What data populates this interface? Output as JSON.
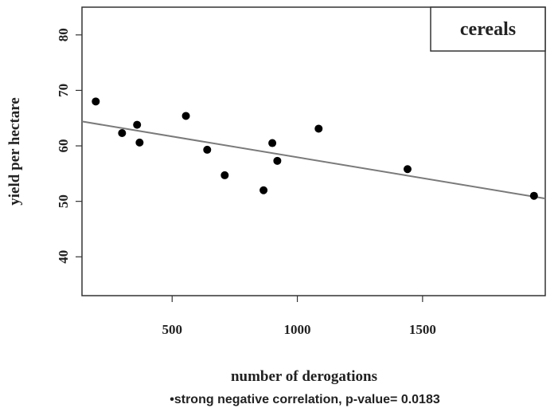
{
  "chart_data": {
    "type": "scatter",
    "title": "",
    "legend_label": "cereals",
    "legend_position": "top-right",
    "xlabel": "number of derogations",
    "ylabel": "yield per hectare",
    "note": "•strong negative correlation, p-value=  0.0183",
    "xlim": [
      140,
      1990
    ],
    "ylim": [
      33,
      85
    ],
    "xticks": [
      500,
      1000,
      1500
    ],
    "yticks": [
      40,
      50,
      60,
      70,
      80
    ],
    "grid": false,
    "points": [
      {
        "x": 195,
        "y": 68.0
      },
      {
        "x": 300,
        "y": 62.3
      },
      {
        "x": 360,
        "y": 63.8
      },
      {
        "x": 370,
        "y": 60.6
      },
      {
        "x": 555,
        "y": 65.4
      },
      {
        "x": 640,
        "y": 59.3
      },
      {
        "x": 710,
        "y": 54.7
      },
      {
        "x": 865,
        "y": 52.0
      },
      {
        "x": 900,
        "y": 60.5
      },
      {
        "x": 920,
        "y": 57.3
      },
      {
        "x": 1085,
        "y": 63.1
      },
      {
        "x": 1440,
        "y": 55.8
      },
      {
        "x": 1945,
        "y": 51.0
      }
    ],
    "trendline": {
      "x": [
        140,
        1990
      ],
      "y": [
        64.4,
        50.5
      ]
    },
    "colors": {
      "points": "#000000",
      "trendline": "#7a7a7a",
      "axis": "#333333"
    }
  }
}
